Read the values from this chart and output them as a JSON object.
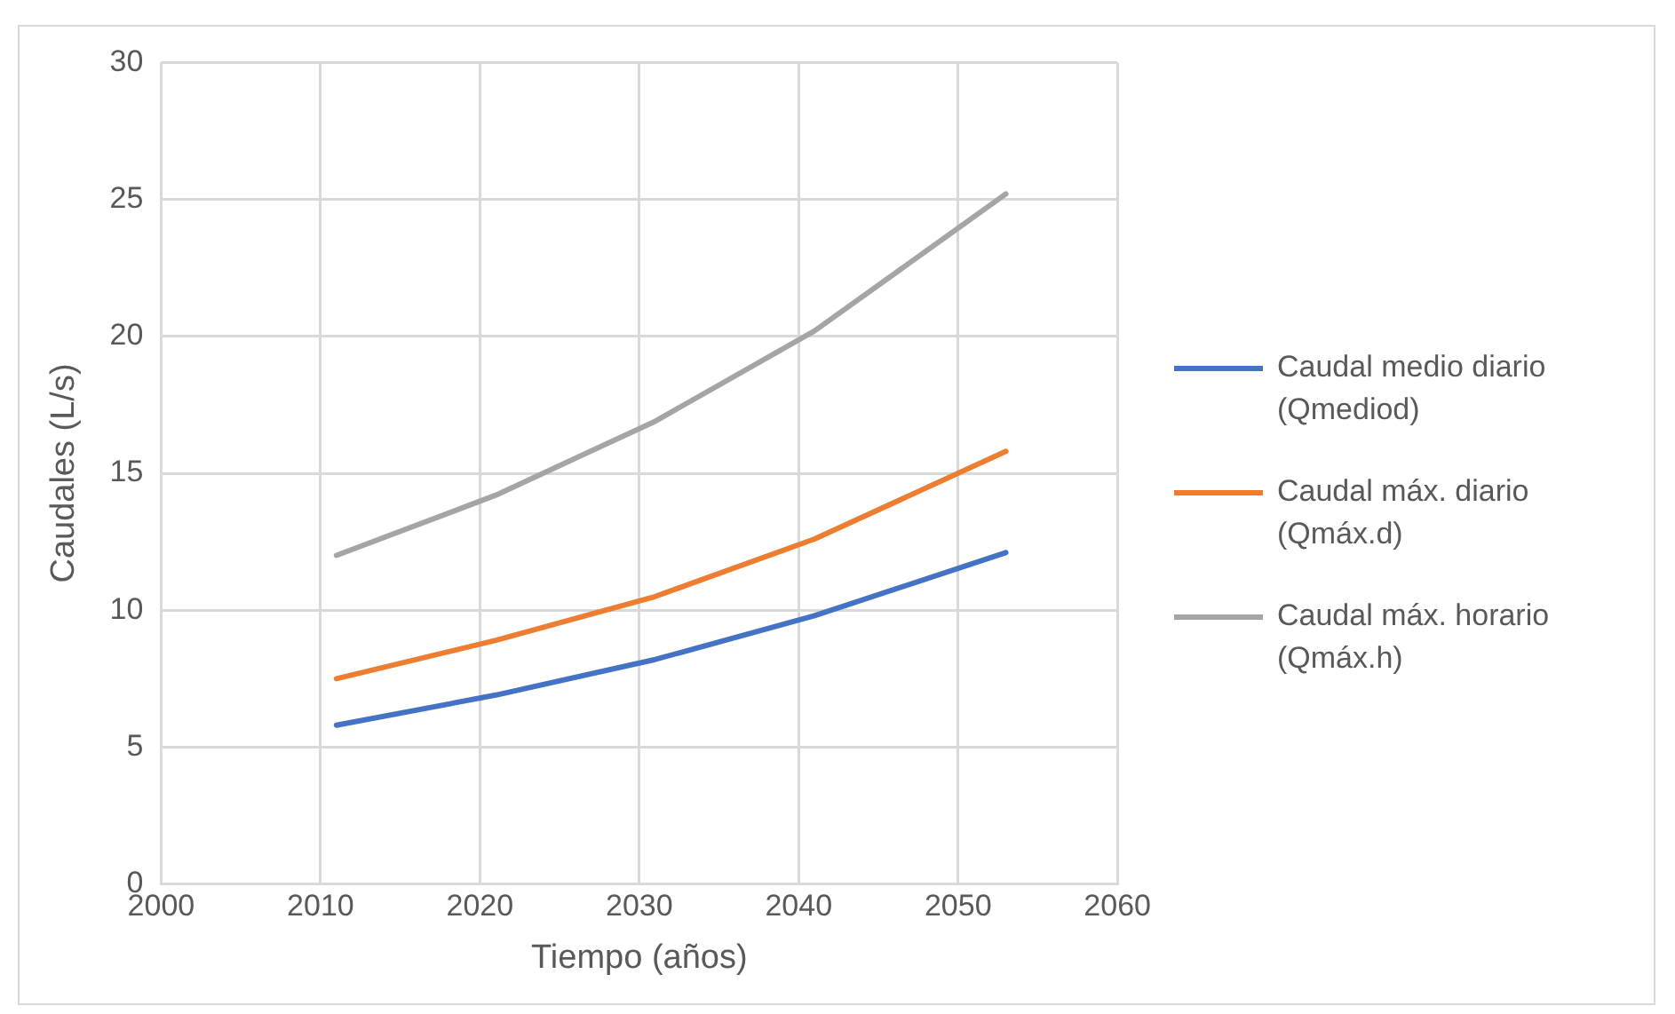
{
  "chart_data": {
    "type": "line",
    "xlabel": "Tiempo (años)",
    "ylabel": "Caudales (L/s)",
    "x": [
      2011,
      2021,
      2031,
      2041,
      2053
    ],
    "series": [
      {
        "name": "Caudal medio diario (Qmediod)",
        "color": "#4472c4",
        "values": [
          5.8,
          6.9,
          8.2,
          9.8,
          12.1
        ]
      },
      {
        "name": "Caudal máx. diario (Qmáx.d)",
        "color": "#ed7d31",
        "values": [
          7.5,
          8.9,
          10.5,
          12.6,
          15.8
        ]
      },
      {
        "name": "Caudal máx. horario (Qmáx.h)",
        "color": "#a5a5a5",
        "values": [
          12.0,
          14.2,
          16.9,
          20.2,
          25.2
        ]
      }
    ],
    "xlim": [
      2000,
      2060
    ],
    "xticks": [
      2000,
      2010,
      2020,
      2030,
      2040,
      2050,
      2060
    ],
    "ylim": [
      0,
      30
    ],
    "yticks": [
      0,
      5,
      10,
      15,
      20,
      25,
      30
    ],
    "grid": true,
    "legend": "right",
    "marker": "none",
    "line_style": "solid"
  }
}
